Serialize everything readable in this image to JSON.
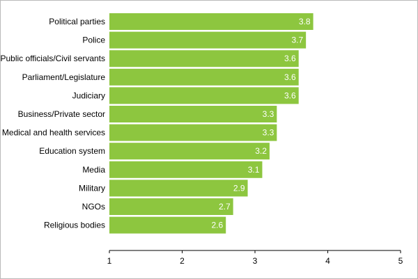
{
  "chart_data": {
    "type": "bar",
    "orientation": "horizontal",
    "categories": [
      "Political parties",
      "Police",
      "Public officials/Civil servants",
      "Parliament/Legislature",
      "Judiciary",
      "Business/Private sector",
      "Medical and health services",
      "Education system",
      "Media",
      "Military",
      "NGOs",
      "Religious bodies"
    ],
    "values": [
      3.8,
      3.7,
      3.6,
      3.6,
      3.6,
      3.3,
      3.3,
      3.2,
      3.1,
      2.9,
      2.7,
      2.6
    ],
    "value_labels": [
      "3.8",
      "3.7",
      "3.6",
      "3.6",
      "3.6",
      "3.3",
      "3.3",
      "3.2",
      "3.1",
      "2.9",
      "2.7",
      "2.6"
    ],
    "title": "",
    "xlabel": "",
    "ylabel": "",
    "xlim": [
      1,
      5
    ],
    "xticks": [
      "1",
      "2",
      "3",
      "4",
      "5"
    ],
    "grid": false,
    "legend": "none",
    "bar_color": "#8dc63f",
    "value_label_color": "#ffffff"
  }
}
